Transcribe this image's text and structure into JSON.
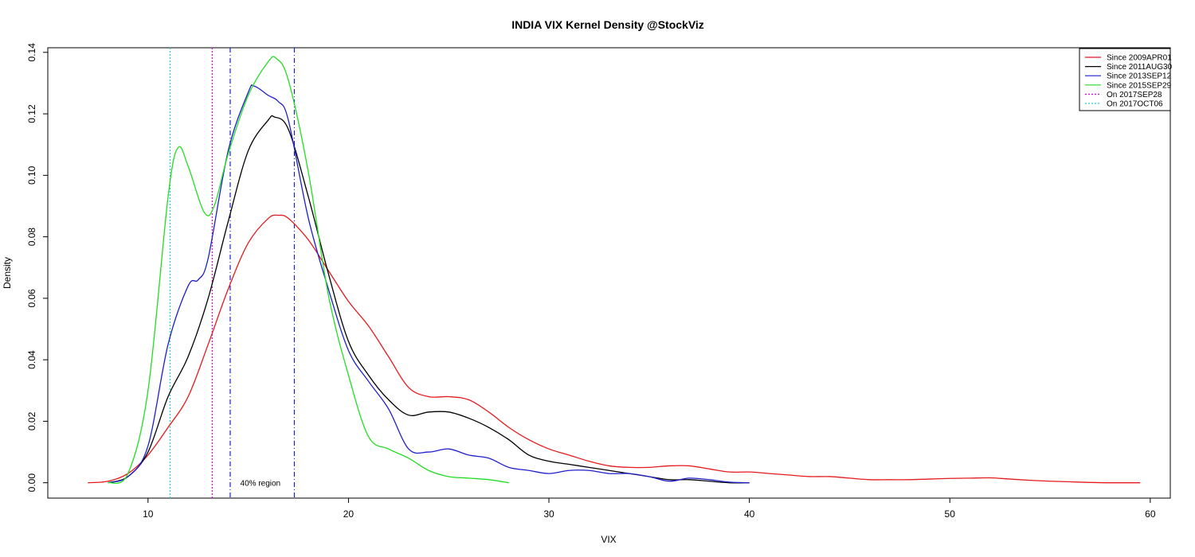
{
  "chart_data": {
    "type": "line",
    "title": "INDIA VIX Kernel Density @StockViz",
    "xlabel": "VIX",
    "ylabel": "Density",
    "xlim": [
      5,
      61
    ],
    "ylim": [
      -0.005,
      0.1415
    ],
    "x_ticks": [
      10,
      20,
      30,
      40,
      50,
      60
    ],
    "y_ticks": [
      0.0,
      0.02,
      0.04,
      0.06,
      0.08,
      0.1,
      0.12,
      0.14
    ],
    "y_tick_labels": [
      "0.00",
      "0.02",
      "0.04",
      "0.06",
      "0.08",
      "0.10",
      "0.12",
      "0.14"
    ],
    "grid": false,
    "legend_position": "top-right",
    "series": [
      {
        "name": "Since 2009APR01",
        "color": "#e41a1c",
        "style": "solid",
        "points": [
          [
            7,
            0
          ],
          [
            8,
            0.0005
          ],
          [
            9,
            0.003
          ],
          [
            10,
            0.009
          ],
          [
            11,
            0.018
          ],
          [
            12,
            0.028
          ],
          [
            13,
            0.045
          ],
          [
            14,
            0.063
          ],
          [
            15,
            0.078
          ],
          [
            16,
            0.086
          ],
          [
            16.5,
            0.087
          ],
          [
            17,
            0.086
          ],
          [
            18,
            0.079
          ],
          [
            19,
            0.069
          ],
          [
            20,
            0.059
          ],
          [
            21,
            0.051
          ],
          [
            22,
            0.041
          ],
          [
            23,
            0.031
          ],
          [
            24,
            0.028
          ],
          [
            25,
            0.028
          ],
          [
            26,
            0.027
          ],
          [
            27,
            0.023
          ],
          [
            28,
            0.018
          ],
          [
            29,
            0.014
          ],
          [
            30,
            0.011
          ],
          [
            31,
            0.009
          ],
          [
            32,
            0.007
          ],
          [
            33,
            0.0055
          ],
          [
            34,
            0.005
          ],
          [
            35,
            0.005
          ],
          [
            36,
            0.0055
          ],
          [
            37,
            0.0055
          ],
          [
            38,
            0.0045
          ],
          [
            39,
            0.0035
          ],
          [
            40,
            0.0035
          ],
          [
            41,
            0.003
          ],
          [
            42,
            0.0025
          ],
          [
            43,
            0.002
          ],
          [
            44,
            0.002
          ],
          [
            45,
            0.0015
          ],
          [
            46,
            0.001
          ],
          [
            47,
            0.001
          ],
          [
            48,
            0.001
          ],
          [
            49,
            0.0012
          ],
          [
            50,
            0.0014
          ],
          [
            51,
            0.0015
          ],
          [
            52,
            0.0016
          ],
          [
            53,
            0.0012
          ],
          [
            54,
            0.0008
          ],
          [
            55,
            0.0005
          ],
          [
            56,
            0.0003
          ],
          [
            57,
            0.0001
          ],
          [
            58,
            0
          ],
          [
            59.5,
            0
          ]
        ]
      },
      {
        "name": "Since 2011AUG30",
        "color": "#000000",
        "style": "solid",
        "points": [
          [
            8,
            0
          ],
          [
            9,
            0.002
          ],
          [
            10,
            0.01
          ],
          [
            11,
            0.028
          ],
          [
            12,
            0.041
          ],
          [
            13,
            0.06
          ],
          [
            14,
            0.085
          ],
          [
            15,
            0.108
          ],
          [
            16,
            0.118
          ],
          [
            16.3,
            0.119
          ],
          [
            17,
            0.115
          ],
          [
            18,
            0.093
          ],
          [
            19,
            0.068
          ],
          [
            20,
            0.046
          ],
          [
            21,
            0.035
          ],
          [
            22,
            0.027
          ],
          [
            23,
            0.022
          ],
          [
            24,
            0.023
          ],
          [
            25,
            0.023
          ],
          [
            26,
            0.021
          ],
          [
            27,
            0.018
          ],
          [
            28,
            0.014
          ],
          [
            29,
            0.009
          ],
          [
            30,
            0.007
          ],
          [
            31,
            0.006
          ],
          [
            32,
            0.005
          ],
          [
            33,
            0.004
          ],
          [
            34,
            0.003
          ],
          [
            35,
            0.002
          ],
          [
            36,
            0.001
          ],
          [
            37,
            0.001
          ],
          [
            38,
            0.0005
          ],
          [
            39,
            0
          ],
          [
            40,
            0
          ]
        ]
      },
      {
        "name": "Since 2013SEP12",
        "color": "#1f1fcc",
        "style": "solid",
        "points": [
          [
            8,
            0
          ],
          [
            9,
            0.002
          ],
          [
            10,
            0.012
          ],
          [
            11,
            0.045
          ],
          [
            12,
            0.064
          ],
          [
            12.5,
            0.066
          ],
          [
            13,
            0.073
          ],
          [
            14,
            0.108
          ],
          [
            15,
            0.127
          ],
          [
            15.3,
            0.129
          ],
          [
            16,
            0.126
          ],
          [
            16.5,
            0.124
          ],
          [
            17,
            0.118
          ],
          [
            18,
            0.086
          ],
          [
            19,
            0.063
          ],
          [
            20,
            0.043
          ],
          [
            21,
            0.033
          ],
          [
            22,
            0.024
          ],
          [
            23,
            0.011
          ],
          [
            24,
            0.01
          ],
          [
            25,
            0.011
          ],
          [
            26,
            0.009
          ],
          [
            27,
            0.008
          ],
          [
            28,
            0.005
          ],
          [
            29,
            0.004
          ],
          [
            30,
            0.003
          ],
          [
            31,
            0.004
          ],
          [
            32,
            0.004
          ],
          [
            33,
            0.003
          ],
          [
            34,
            0.003
          ],
          [
            35,
            0.002
          ],
          [
            36,
            0.0005
          ],
          [
            37,
            0.0015
          ],
          [
            38,
            0.001
          ],
          [
            39,
            0.0002
          ],
          [
            40,
            0
          ]
        ]
      },
      {
        "name": "Since 2015SEP29",
        "color": "#22dd22",
        "style": "solid",
        "points": [
          [
            8,
            0
          ],
          [
            9,
            0.003
          ],
          [
            10,
            0.03
          ],
          [
            11,
            0.093
          ],
          [
            11.5,
            0.109
          ],
          [
            12,
            0.103
          ],
          [
            12.8,
            0.088
          ],
          [
            13.3,
            0.09
          ],
          [
            14,
            0.107
          ],
          [
            15,
            0.126
          ],
          [
            16,
            0.137
          ],
          [
            16.4,
            0.138
          ],
          [
            17,
            0.131
          ],
          [
            18,
            0.101
          ],
          [
            19,
            0.061
          ],
          [
            20,
            0.035
          ],
          [
            21,
            0.015
          ],
          [
            22,
            0.011
          ],
          [
            23,
            0.008
          ],
          [
            24,
            0.004
          ],
          [
            25,
            0.002
          ],
          [
            26,
            0.0015
          ],
          [
            27,
            0.001
          ],
          [
            28,
            0
          ]
        ]
      }
    ],
    "vlines": [
      {
        "name": "On 2017SEP28",
        "x": 13.2,
        "color": "#dd00dd",
        "style": "dotted"
      },
      {
        "name": "On 2017OCT06",
        "x": 11.1,
        "color": "#22ccdd",
        "style": "dotted"
      },
      {
        "x": 14.1,
        "color": "#1f1fcc",
        "style": "dashdot"
      },
      {
        "x": 17.3,
        "color": "#1f1fcc",
        "style": "dashdot"
      }
    ],
    "annotations": [
      {
        "text": "40% region",
        "x": 14.6,
        "y": 0.0
      }
    ]
  }
}
